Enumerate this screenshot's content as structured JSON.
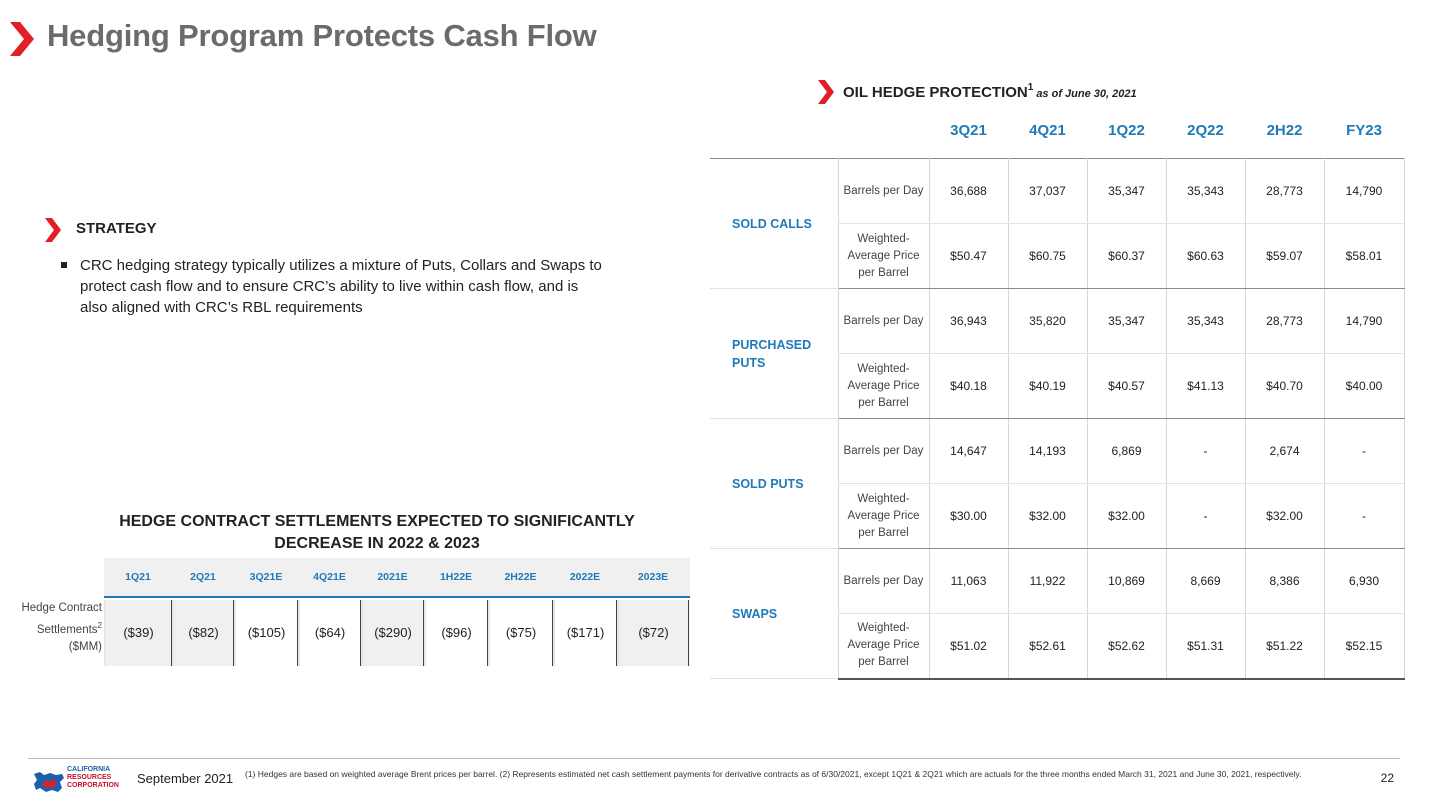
{
  "title": "Hedging Program Protects Cash Flow",
  "colors": {
    "accent_red": "#e21e26",
    "accent_blue": "#1f7ab8",
    "title_gray": "#6b6b6b"
  },
  "strategy": {
    "heading": "STRATEGY",
    "bullet": "CRC hedging strategy typically utilizes a mixture of Puts, Collars and Swaps to protect cash flow and to ensure CRC’s ability to live within cash flow, and is also aligned with CRC’s RBL requirements"
  },
  "oil": {
    "heading": "OIL HEDGE PROTECTION",
    "sup": "1",
    "as_of": "as of June 30, 2021",
    "periods": [
      "3Q21",
      "4Q21",
      "1Q22",
      "2Q22",
      "2H22",
      "FY23"
    ],
    "groups": [
      {
        "label": "SOLD CALLS",
        "rows": [
          {
            "metric": "Barrels per Day",
            "values": [
              "36,688",
              "37,037",
              "35,347",
              "35,343",
              "28,773",
              "14,790"
            ]
          },
          {
            "metric": "Weighted-Average Price per Barrel",
            "values": [
              "$50.47",
              "$60.75",
              "$60.37",
              "$60.63",
              "$59.07",
              "$58.01"
            ]
          }
        ]
      },
      {
        "label": "PURCHASED PUTS",
        "rows": [
          {
            "metric": "Barrels per Day",
            "values": [
              "36,943",
              "35,820",
              "35,347",
              "35,343",
              "28,773",
              "14,790"
            ]
          },
          {
            "metric": "Weighted-Average Price per Barrel",
            "values": [
              "$40.18",
              "$40.19",
              "$40.57",
              "$41.13",
              "$40.70",
              "$40.00"
            ]
          }
        ]
      },
      {
        "label": "SOLD PUTS",
        "rows": [
          {
            "metric": "Barrels per Day",
            "values": [
              "14,647",
              "14,193",
              "6,869",
              "-",
              "2,674",
              "-"
            ]
          },
          {
            "metric": "Weighted-Average Price per Barrel",
            "values": [
              "$30.00",
              "$32.00",
              "$32.00",
              "-",
              "$32.00",
              "-"
            ]
          }
        ]
      },
      {
        "label": "SWAPS",
        "rows": [
          {
            "metric": "Barrels per Day",
            "values": [
              "11,063",
              "11,922",
              "10,869",
              "8,669",
              "8,386",
              "6,930"
            ]
          },
          {
            "metric": "Weighted-Average Price per Barrel",
            "values": [
              "$51.02",
              "$52.61",
              "$52.62",
              "$51.31",
              "$51.22",
              "$52.15"
            ]
          }
        ]
      }
    ]
  },
  "settlements": {
    "heading": "HEDGE CONTRACT SETTLEMENTS EXPECTED TO SIGNIFICANTLY DECREASE IN 2022 & 2023",
    "row_label": "Hedge Contract Settlements",
    "row_label_sup": "2",
    "row_label_unit": "($MM)",
    "periods": [
      "1Q21",
      "2Q21",
      "3Q21E",
      "4Q21E",
      "2021E",
      "1H22E",
      "2H22E",
      "2022E",
      "2023E"
    ],
    "values": [
      "($39)",
      "($82)",
      "($105)",
      "($64)",
      "($290)",
      "($96)",
      "($75)",
      "($171)",
      "($72)"
    ]
  },
  "footer": {
    "logo_lines": [
      "CALIFORNIA",
      "RESOURCES",
      "CORPORATION"
    ],
    "date": "September 2021",
    "footnote": "(1) Hedges are based on weighted average Brent prices per barrel. (2) Represents estimated net cash settlement payments for derivative contracts as of 6/30/2021, except 1Q21 & 2Q21  which are actuals for the three months ended March 31, 2021 and June 30, 2021, respectively.",
    "page": "22"
  }
}
